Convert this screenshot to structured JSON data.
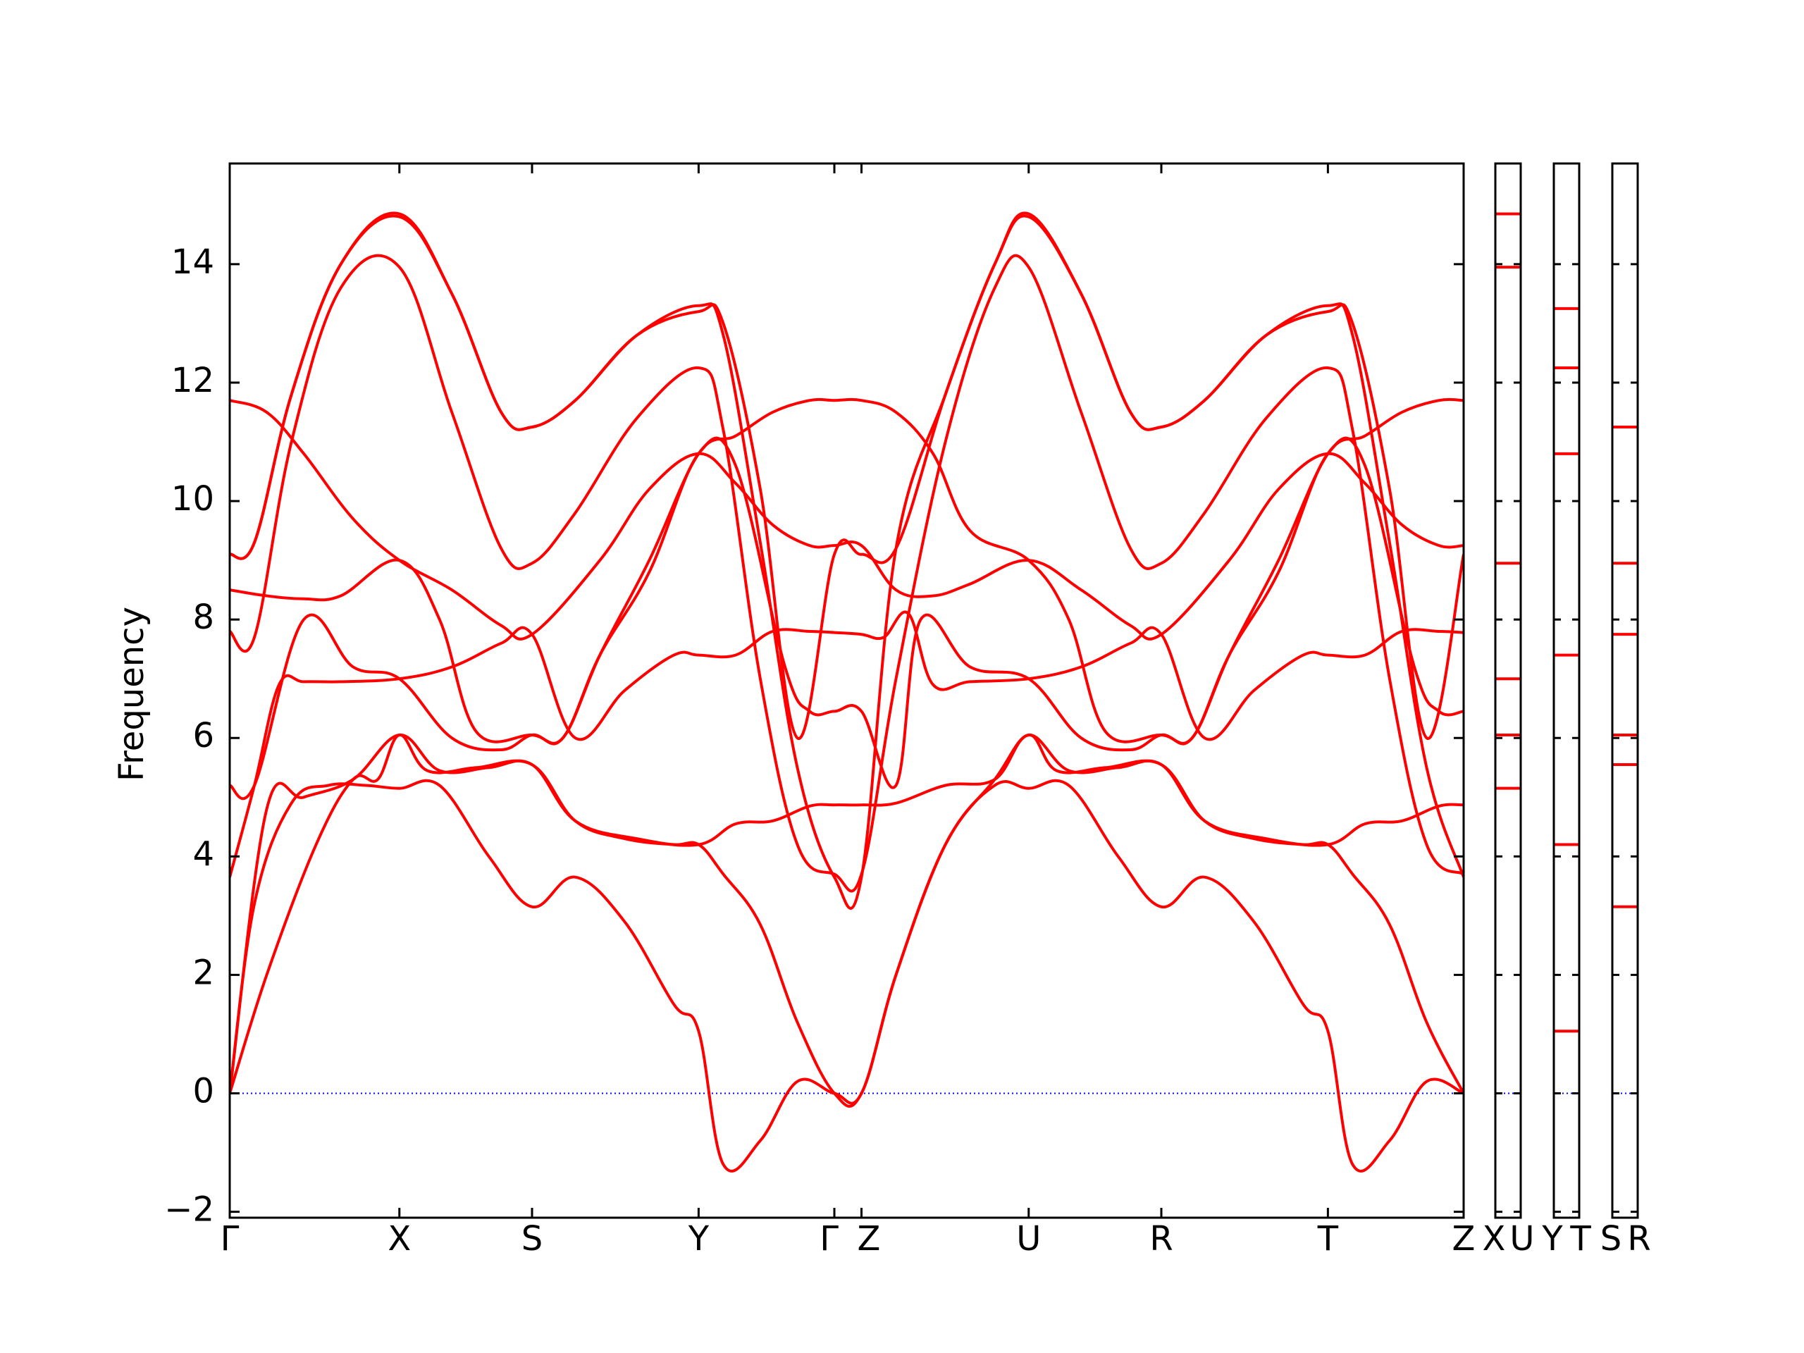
{
  "chart_data": {
    "type": "line",
    "title": "",
    "ylabel": "Frequency",
    "xlabel": "",
    "ylim": [
      -2.1,
      15.7
    ],
    "yticks": [
      -2,
      0,
      2,
      4,
      6,
      8,
      10,
      12,
      14
    ],
    "ytick_labels": [
      "−2",
      "0",
      "2",
      "4",
      "6",
      "8",
      "10",
      "12",
      "14"
    ],
    "grid": false,
    "legend": "none",
    "colors": {
      "bands": "#ff0000",
      "zero_line": "#0000ff",
      "axes": "#000000"
    },
    "main_panel": {
      "x_range": [
        0,
        1
      ],
      "points": [
        {
          "label": "Γ",
          "x": 0.0
        },
        {
          "label": "X",
          "x": 0.1375
        },
        {
          "label": "S",
          "x": 0.245
        },
        {
          "label": "Y",
          "x": 0.38
        },
        {
          "label": "Γ",
          "x": 0.49
        },
        {
          "label": "Z",
          "x": 0.512
        },
        {
          "label": "U",
          "x": 0.6475
        },
        {
          "label": "R",
          "x": 0.755
        },
        {
          "label": "T",
          "x": 0.89
        },
        {
          "label": "Z",
          "x": 1.0
        }
      ],
      "series": [
        {
          "x": [
            0.0,
            0.02,
            0.05,
            0.08,
            0.11,
            0.1375,
            0.17,
            0.21,
            0.245,
            0.28,
            0.32,
            0.36,
            0.38,
            0.4,
            0.43,
            0.46,
            0.49,
            0.512,
            0.54,
            0.58,
            0.62,
            0.6475,
            0.68,
            0.72,
            0.755,
            0.79,
            0.83,
            0.87,
            0.89,
            0.91,
            0.94,
            0.97,
            1.0
          ],
          "y": [
            0.0,
            3.2,
            4.9,
            5.2,
            5.2,
            5.15,
            5.2,
            4.0,
            3.15,
            3.65,
            2.9,
            1.5,
            1.05,
            -1.2,
            -0.8,
            0.2,
            0.0,
            0.0,
            2.0,
            4.2,
            5.2,
            5.15,
            5.2,
            4.0,
            3.15,
            3.65,
            2.9,
            1.5,
            1.05,
            -1.2,
            -0.8,
            0.2,
            0.0
          ]
        },
        {
          "x": [
            0.0,
            0.03,
            0.07,
            0.1,
            0.12,
            0.1375,
            0.16,
            0.2,
            0.245,
            0.28,
            0.32,
            0.36,
            0.38,
            0.4,
            0.43,
            0.46,
            0.49,
            0.512,
            0.54,
            0.58,
            0.62,
            0.6475,
            0.67,
            0.71,
            0.755,
            0.79,
            0.83,
            0.87,
            0.89,
            0.91,
            0.94,
            0.97,
            1.0
          ],
          "y": [
            0.0,
            2.0,
            4.2,
            5.3,
            5.3,
            6.05,
            5.45,
            5.5,
            5.55,
            4.6,
            4.3,
            4.2,
            4.2,
            3.7,
            2.85,
            1.2,
            0.0,
            0.0,
            2.0,
            4.2,
            5.3,
            6.05,
            5.45,
            5.5,
            5.55,
            4.6,
            4.3,
            4.2,
            4.2,
            3.7,
            2.85,
            1.2,
            0.0
          ]
        },
        {
          "x": [
            0.0,
            0.03,
            0.06,
            0.1,
            0.1375,
            0.17,
            0.21,
            0.245,
            0.28,
            0.33,
            0.38,
            0.41,
            0.44,
            0.47,
            0.49,
            0.512,
            0.54,
            0.58,
            0.62,
            0.6475,
            0.68,
            0.72,
            0.755,
            0.79,
            0.84,
            0.89,
            0.92,
            0.95,
            0.98,
            1.0
          ],
          "y": [
            0.0,
            4.8,
            5.0,
            5.3,
            6.05,
            5.45,
            5.5,
            5.55,
            4.6,
            4.3,
            4.2,
            4.55,
            4.6,
            4.85,
            4.87,
            4.87,
            4.9,
            5.2,
            5.3,
            6.05,
            5.45,
            5.5,
            5.55,
            4.6,
            4.3,
            4.2,
            4.55,
            4.6,
            4.85,
            4.87
          ]
        },
        {
          "x": [
            0.0,
            0.02,
            0.04,
            0.06,
            0.09,
            0.1375,
            0.18,
            0.22,
            0.245,
            0.28,
            0.32,
            0.36,
            0.38,
            0.41,
            0.44,
            0.47,
            0.49,
            0.512,
            0.53,
            0.55,
            0.57,
            0.6,
            0.6475,
            0.69,
            0.73,
            0.755,
            0.79,
            0.83,
            0.87,
            0.89,
            0.92,
            0.95,
            0.98,
            1.0
          ],
          "y": [
            3.65,
            5.2,
            6.9,
            6.95,
            6.95,
            7.0,
            7.2,
            7.6,
            7.75,
            6.0,
            6.8,
            7.4,
            7.4,
            7.4,
            7.8,
            7.8,
            7.78,
            7.75,
            7.7,
            8.1,
            6.9,
            6.95,
            7.0,
            7.2,
            7.6,
            7.75,
            6.0,
            6.8,
            7.4,
            7.4,
            7.4,
            7.8,
            7.8,
            7.78
          ]
        },
        {
          "x": [
            0.0,
            0.02,
            0.06,
            0.1,
            0.1375,
            0.18,
            0.22,
            0.245,
            0.27,
            0.3,
            0.34,
            0.38,
            0.41,
            0.45,
            0.47,
            0.49,
            0.512,
            0.54,
            0.56,
            0.6,
            0.6475,
            0.69,
            0.73,
            0.755,
            0.78,
            0.81,
            0.85,
            0.89,
            0.92,
            0.96,
            0.98,
            1.0
          ],
          "y": [
            5.2,
            5.2,
            8.0,
            7.2,
            7.0,
            6.0,
            5.8,
            6.05,
            6.0,
            7.4,
            8.8,
            10.8,
            10.6,
            7.2,
            6.45,
            6.45,
            6.45,
            5.2,
            8.0,
            7.2,
            7.0,
            6.0,
            5.8,
            6.05,
            6.0,
            7.4,
            8.8,
            10.8,
            10.6,
            7.2,
            6.45,
            6.45
          ]
        },
        {
          "x": [
            0.0,
            0.03,
            0.06,
            0.09,
            0.1375,
            0.17,
            0.2,
            0.245,
            0.27,
            0.3,
            0.34,
            0.38,
            0.41,
            0.44,
            0.47,
            0.49,
            0.512,
            0.54,
            0.57,
            0.6,
            0.6475,
            0.68,
            0.71,
            0.755,
            0.78,
            0.81,
            0.85,
            0.89,
            0.92,
            0.95,
            0.98,
            1.0
          ],
          "y": [
            8.5,
            8.4,
            8.35,
            8.4,
            9.0,
            8.0,
            6.1,
            6.05,
            6.0,
            7.4,
            9.0,
            10.8,
            11.1,
            11.5,
            11.7,
            11.7,
            11.7,
            11.5,
            10.8,
            9.5,
            9.0,
            8.0,
            6.1,
            6.05,
            6.0,
            7.4,
            9.0,
            10.8,
            11.1,
            11.5,
            11.7,
            11.7
          ]
        },
        {
          "x": [
            0.0,
            0.03,
            0.06,
            0.1,
            0.1375,
            0.18,
            0.22,
            0.245,
            0.3,
            0.34,
            0.38,
            0.41,
            0.44,
            0.47,
            0.49,
            0.512,
            0.54,
            0.57,
            0.6,
            0.6475,
            0.69,
            0.73,
            0.755,
            0.81,
            0.85,
            0.89,
            0.92,
            0.95,
            0.98,
            1.0
          ],
          "y": [
            11.7,
            11.5,
            10.8,
            9.7,
            9.0,
            8.5,
            7.9,
            7.75,
            9.0,
            10.2,
            10.8,
            10.3,
            9.6,
            9.25,
            9.25,
            9.25,
            8.5,
            8.4,
            8.6,
            9.0,
            8.5,
            7.9,
            7.75,
            9.0,
            10.2,
            10.8,
            10.3,
            9.6,
            9.25,
            9.25
          ]
        },
        {
          "x": [
            0.0,
            0.02,
            0.05,
            0.09,
            0.1375,
            0.18,
            0.22,
            0.245,
            0.28,
            0.33,
            0.38,
            0.4,
            0.43,
            0.46,
            0.49,
            0.512,
            0.54,
            0.58,
            0.62,
            0.6475,
            0.69,
            0.73,
            0.755,
            0.79,
            0.84,
            0.89,
            0.91,
            0.94,
            0.97,
            1.0
          ],
          "y": [
            7.8,
            7.7,
            11.0,
            13.6,
            13.95,
            11.5,
            9.2,
            8.95,
            9.8,
            11.4,
            12.25,
            11.2,
            7.0,
            4.2,
            3.7,
            3.7,
            7.0,
            11.0,
            13.6,
            13.95,
            11.5,
            9.2,
            8.95,
            9.8,
            11.4,
            12.25,
            11.2,
            7.0,
            4.2,
            3.7
          ]
        },
        {
          "x": [
            0.0,
            0.02,
            0.05,
            0.09,
            0.1375,
            0.18,
            0.22,
            0.245,
            0.28,
            0.33,
            0.38,
            0.4,
            0.43,
            0.46,
            0.49,
            0.512,
            0.54,
            0.58,
            0.62,
            0.6475,
            0.69,
            0.73,
            0.755,
            0.79,
            0.84,
            0.89,
            0.91,
            0.94,
            0.97,
            1.0
          ],
          "y": [
            9.1,
            9.3,
            11.8,
            14.0,
            14.85,
            13.5,
            11.5,
            11.25,
            11.7,
            12.8,
            13.3,
            12.8,
            9.3,
            5.5,
            3.65,
            3.65,
            9.2,
            11.8,
            14.0,
            14.85,
            13.5,
            11.5,
            11.25,
            11.7,
            12.8,
            13.3,
            12.8,
            9.3,
            5.5,
            3.65
          ]
        },
        {
          "x": [
            0.0,
            0.02,
            0.05,
            0.09,
            0.1375,
            0.18,
            0.22,
            0.245,
            0.28,
            0.33,
            0.38,
            0.4,
            0.43,
            0.46,
            0.49,
            0.512,
            0.54,
            0.58,
            0.62,
            0.6475,
            0.69,
            0.73,
            0.755,
            0.79,
            0.84,
            0.89,
            0.91,
            0.94,
            0.97,
            1.0
          ],
          "y": [
            9.1,
            9.3,
            11.8,
            14.0,
            14.8,
            13.5,
            11.5,
            11.25,
            11.7,
            12.8,
            13.2,
            13.0,
            10.2,
            6.0,
            9.1,
            9.1,
            9.2,
            11.8,
            14.0,
            14.8,
            13.5,
            11.5,
            11.25,
            11.7,
            12.8,
            13.2,
            13.0,
            10.2,
            6.0,
            9.1
          ]
        }
      ]
    },
    "side_panels": [
      {
        "left_label": "X",
        "right_label": "U",
        "levels": [
          5.15,
          6.05,
          7.0,
          8.95,
          13.95,
          14.85
        ]
      },
      {
        "left_label": "Y",
        "right_label": "T",
        "levels": [
          1.05,
          4.2,
          7.4,
          10.8,
          12.25,
          13.25
        ]
      },
      {
        "left_label": "S",
        "right_label": "R",
        "levels": [
          3.15,
          5.55,
          6.05,
          7.75,
          8.95,
          11.25
        ]
      }
    ]
  }
}
